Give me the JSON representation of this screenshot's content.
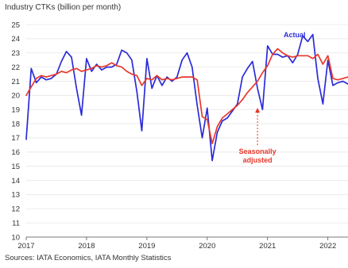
{
  "chart_data": {
    "type": "line",
    "title": "Industry CTKs (billion per month)",
    "source": "Sources: IATA Economics, IATA Monthly Statistics",
    "ylim": [
      10,
      25
    ],
    "yticks": [
      10,
      11,
      12,
      13,
      14,
      15,
      16,
      17,
      18,
      19,
      20,
      21,
      22,
      23,
      24,
      25
    ],
    "xlim": [
      "2017-01",
      "2022-05"
    ],
    "xticks": [
      "2017",
      "2018",
      "2019",
      "2020",
      "2021",
      "2022"
    ],
    "grid": true,
    "series": [
      {
        "name": "Actual",
        "color": "#2b2bd9",
        "x": [
          "2017-01",
          "2017-02",
          "2017-03",
          "2017-04",
          "2017-05",
          "2017-06",
          "2017-07",
          "2017-08",
          "2017-09",
          "2017-10",
          "2017-11",
          "2017-12",
          "2018-01",
          "2018-02",
          "2018-03",
          "2018-04",
          "2018-05",
          "2018-06",
          "2018-07",
          "2018-08",
          "2018-09",
          "2018-10",
          "2018-11",
          "2018-12",
          "2019-01",
          "2019-02",
          "2019-03",
          "2019-04",
          "2019-05",
          "2019-06",
          "2019-07",
          "2019-08",
          "2019-09",
          "2019-10",
          "2019-11",
          "2019-12",
          "2020-01",
          "2020-02",
          "2020-03",
          "2020-04",
          "2020-05",
          "2020-06",
          "2020-07",
          "2020-08",
          "2020-09",
          "2020-10",
          "2020-11",
          "2020-12",
          "2021-01",
          "2021-02",
          "2021-03",
          "2021-04",
          "2021-05",
          "2021-06",
          "2021-07",
          "2021-08",
          "2021-09",
          "2021-10",
          "2021-11",
          "2021-12",
          "2022-01",
          "2022-02",
          "2022-03",
          "2022-04",
          "2022-05"
        ],
        "values": [
          16.9,
          21.9,
          20.9,
          21.3,
          21.1,
          21.2,
          21.5,
          22.4,
          23.1,
          22.7,
          20.5,
          18.6,
          22.6,
          21.7,
          22.2,
          21.8,
          22.0,
          22.0,
          22.2,
          23.2,
          23.0,
          22.5,
          20.3,
          17.5,
          22.6,
          20.5,
          21.4,
          20.7,
          21.3,
          21.0,
          21.3,
          22.5,
          23.0,
          22.0,
          19.3,
          17.0,
          19.1,
          15.4,
          17.4,
          18.2,
          18.4,
          18.9,
          19.4,
          21.3,
          21.9,
          22.4,
          20.5,
          19.0,
          23.5,
          22.9,
          22.9,
          22.7,
          22.8,
          22.3,
          22.9,
          24.2,
          23.8,
          24.3,
          21.2,
          19.4,
          22.5,
          20.7,
          20.9,
          21.0,
          20.8
        ]
      },
      {
        "name": "Seasonally adjusted",
        "color": "#e8382b",
        "x": [
          "2017-01",
          "2017-02",
          "2017-03",
          "2017-04",
          "2017-05",
          "2017-06",
          "2017-07",
          "2017-08",
          "2017-09",
          "2017-10",
          "2017-11",
          "2017-12",
          "2018-01",
          "2018-02",
          "2018-03",
          "2018-04",
          "2018-05",
          "2018-06",
          "2018-07",
          "2018-08",
          "2018-09",
          "2018-10",
          "2018-11",
          "2018-12",
          "2019-01",
          "2019-02",
          "2019-03",
          "2019-04",
          "2019-05",
          "2019-06",
          "2019-07",
          "2019-08",
          "2019-09",
          "2019-10",
          "2019-11",
          "2019-12",
          "2020-01",
          "2020-02",
          "2020-03",
          "2020-04",
          "2020-05",
          "2020-06",
          "2020-07",
          "2020-08",
          "2020-09",
          "2020-10",
          "2020-11",
          "2020-12",
          "2021-01",
          "2021-02",
          "2021-03",
          "2021-04",
          "2021-05",
          "2021-06",
          "2021-07",
          "2021-08",
          "2021-09",
          "2021-10",
          "2021-11",
          "2021-12",
          "2022-01",
          "2022-02",
          "2022-03",
          "2022-04",
          "2022-05"
        ],
        "values": [
          20.0,
          20.6,
          21.2,
          21.4,
          21.3,
          21.4,
          21.5,
          21.7,
          21.6,
          21.8,
          21.9,
          21.7,
          21.8,
          21.9,
          22.1,
          22.0,
          22.1,
          22.3,
          22.1,
          22.0,
          21.7,
          21.5,
          21.4,
          20.7,
          21.2,
          21.1,
          21.4,
          21.1,
          21.2,
          21.1,
          21.2,
          21.3,
          21.3,
          21.3,
          21.1,
          18.5,
          18.3,
          16.6,
          17.8,
          18.4,
          18.7,
          19.0,
          19.3,
          19.7,
          20.2,
          20.6,
          21.0,
          21.6,
          22.1,
          22.9,
          23.3,
          23.0,
          22.8,
          22.7,
          22.8,
          22.8,
          22.8,
          22.6,
          22.9,
          22.2,
          22.8,
          21.2,
          21.1,
          21.2,
          21.3
        ]
      }
    ],
    "annotations": [
      {
        "text": "Actual",
        "color": "#2b2bd9"
      },
      {
        "text_lines": [
          "Seasonally",
          "adjusted"
        ],
        "color": "#e8382b"
      }
    ]
  }
}
